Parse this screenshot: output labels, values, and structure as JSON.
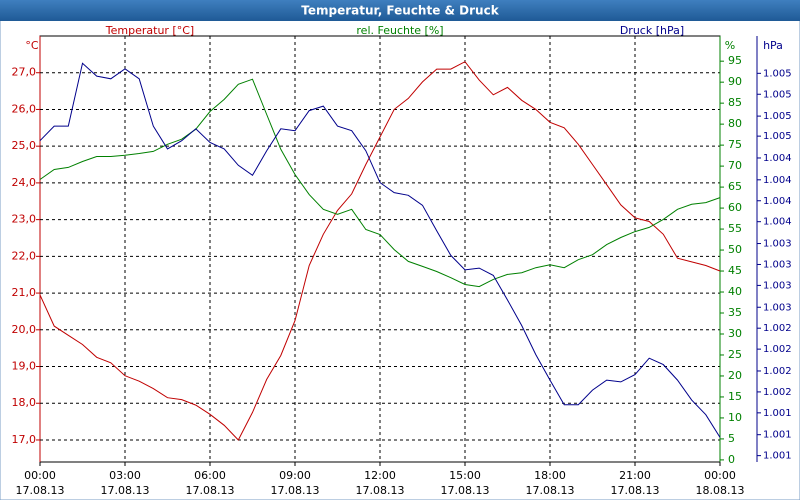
{
  "chart_data": {
    "type": "line",
    "title": "Temperatur, Feuchte & Druck",
    "x": [
      0,
      0.5,
      1,
      1.5,
      2,
      2.5,
      3,
      3.5,
      4,
      4.5,
      5,
      5.5,
      6,
      6.5,
      7,
      7.5,
      8,
      8.5,
      9,
      9.5,
      10,
      10.5,
      11,
      11.5,
      12,
      12.5,
      13,
      13.5,
      14,
      14.5,
      15,
      15.5,
      16,
      16.5,
      17,
      17.5,
      18,
      18.5,
      19,
      19.5,
      20,
      20.5,
      21,
      21.5,
      22,
      22.5,
      23,
      23.5,
      24
    ],
    "xlim": [
      0,
      24
    ],
    "xticks": [
      {
        "value": 0,
        "label": "00:00",
        "date": "17.08.13"
      },
      {
        "value": 3,
        "label": "03:00",
        "date": "17.08.13"
      },
      {
        "value": 6,
        "label": "06:00",
        "date": "17.08.13"
      },
      {
        "value": 9,
        "label": "09:00",
        "date": "17.08.13"
      },
      {
        "value": 12,
        "label": "12:00",
        "date": "17.08.13"
      },
      {
        "value": 15,
        "label": "15:00",
        "date": "17.08.13"
      },
      {
        "value": 18,
        "label": "18:00",
        "date": "17.08.13"
      },
      {
        "value": 21,
        "label": "21:00",
        "date": "17.08.13"
      },
      {
        "value": 24,
        "label": "00:00",
        "date": "18.08.13"
      }
    ],
    "ylabel": "Temperatur [°C]",
    "yunit": "°C",
    "ylim": [
      16.4,
      28.0
    ],
    "yticks": [
      {
        "value": 17,
        "label": "17,0"
      },
      {
        "value": 18,
        "label": "18,0"
      },
      {
        "value": 19,
        "label": "19,0"
      },
      {
        "value": 20,
        "label": "20,0"
      },
      {
        "value": 21,
        "label": "21,0"
      },
      {
        "value": 22,
        "label": "22,0"
      },
      {
        "value": 23,
        "label": "23,0"
      },
      {
        "value": 24,
        "label": "24,0"
      },
      {
        "value": 25,
        "label": "25,0"
      },
      {
        "value": 26,
        "label": "26,0"
      },
      {
        "value": 27,
        "label": "27,0"
      }
    ],
    "y2label": "rel. Feuchte [%]",
    "y2unit": "%",
    "y2lim": [
      -0.5,
      101
    ],
    "y2ticks": [
      0,
      5,
      10,
      15,
      20,
      25,
      30,
      35,
      40,
      45,
      50,
      55,
      60,
      65,
      70,
      75,
      80,
      85,
      90,
      95
    ],
    "y3label": "Druck [hPa]",
    "y3unit": "hPa",
    "y3lim": [
      1.00093,
      1.00561
    ],
    "y3ticks": [
      {
        "value": 1.001,
        "label": "1.001"
      },
      {
        "value": 1.00123,
        "label": "1.001"
      },
      {
        "value": 1.00147,
        "label": "1.001"
      },
      {
        "value": 1.0017,
        "label": "1.002"
      },
      {
        "value": 1.00193,
        "label": "1.002"
      },
      {
        "value": 1.00217,
        "label": "1.002"
      },
      {
        "value": 1.0024,
        "label": "1.002"
      },
      {
        "value": 1.00263,
        "label": "1.003"
      },
      {
        "value": 1.00287,
        "label": "1.003"
      },
      {
        "value": 1.0031,
        "label": "1.003"
      },
      {
        "value": 1.00333,
        "label": "1.003"
      },
      {
        "value": 1.00357,
        "label": "1.004"
      },
      {
        "value": 1.0038,
        "label": "1.004"
      },
      {
        "value": 1.00403,
        "label": "1.004"
      },
      {
        "value": 1.00427,
        "label": "1.004"
      },
      {
        "value": 1.00451,
        "label": "1.005"
      },
      {
        "value": 1.00473,
        "label": "1.005"
      },
      {
        "value": 1.00497,
        "label": "1.005"
      },
      {
        "value": 1.0052,
        "label": "1.005"
      }
    ],
    "grid": true,
    "series": [
      {
        "name": "Temperatur",
        "color": "#c00000",
        "axis": "y",
        "values": [
          20.95,
          20.1,
          19.85,
          19.6,
          19.25,
          19.1,
          18.75,
          18.6,
          18.4,
          18.15,
          18.1,
          17.95,
          17.7,
          17.4,
          17.0,
          17.75,
          18.65,
          19.3,
          20.25,
          21.75,
          22.6,
          23.25,
          23.7,
          24.5,
          25.25,
          26.0,
          26.3,
          26.75,
          27.1,
          27.1,
          27.3,
          26.8,
          26.4,
          26.6,
          26.25,
          26.0,
          25.65,
          25.5,
          25.05,
          24.5,
          23.95,
          23.4,
          23.05,
          22.95,
          22.6,
          21.95,
          21.85,
          21.75,
          21.6
        ]
      },
      {
        "name": "rel. Feuchte",
        "color": "#008000",
        "axis": "y2",
        "values": [
          66.8,
          69.2,
          69.7,
          71.1,
          72.3,
          72.3,
          72.6,
          73,
          73.5,
          75.2,
          76.4,
          78.8,
          83,
          85.9,
          89.5,
          90.7,
          82.3,
          74,
          68,
          63.2,
          59.7,
          58.5,
          59.7,
          54.9,
          53.7,
          50.1,
          47.3,
          46.1,
          44.9,
          43.4,
          41.8,
          41.3,
          43,
          44.2,
          44.6,
          45.8,
          46.5,
          45.8,
          47.7,
          48.9,
          51.3,
          53,
          54.4,
          55.4,
          57.3,
          59.7,
          60.9,
          61.3,
          62.5
        ]
      },
      {
        "name": "Druck",
        "color": "#00008b",
        "axis": "y3",
        "values": [
          1.00446,
          1.00462,
          1.00462,
          1.00531,
          1.00517,
          1.00514,
          1.00525,
          1.00514,
          1.00462,
          1.00437,
          1.00446,
          1.00459,
          1.00444,
          1.00437,
          1.00419,
          1.00408,
          1.00435,
          1.00459,
          1.00457,
          1.00479,
          1.00484,
          1.00462,
          1.00457,
          1.00435,
          1.004,
          1.00389,
          1.00386,
          1.00375,
          1.00347,
          1.0032,
          1.00304,
          1.00306,
          1.00298,
          1.00271,
          1.00243,
          1.00211,
          1.00183,
          1.00156,
          1.00156,
          1.00172,
          1.00183,
          1.00181,
          1.00189,
          1.00207,
          1.002,
          1.00183,
          1.00161,
          1.00145,
          1.0012
        ]
      }
    ]
  }
}
